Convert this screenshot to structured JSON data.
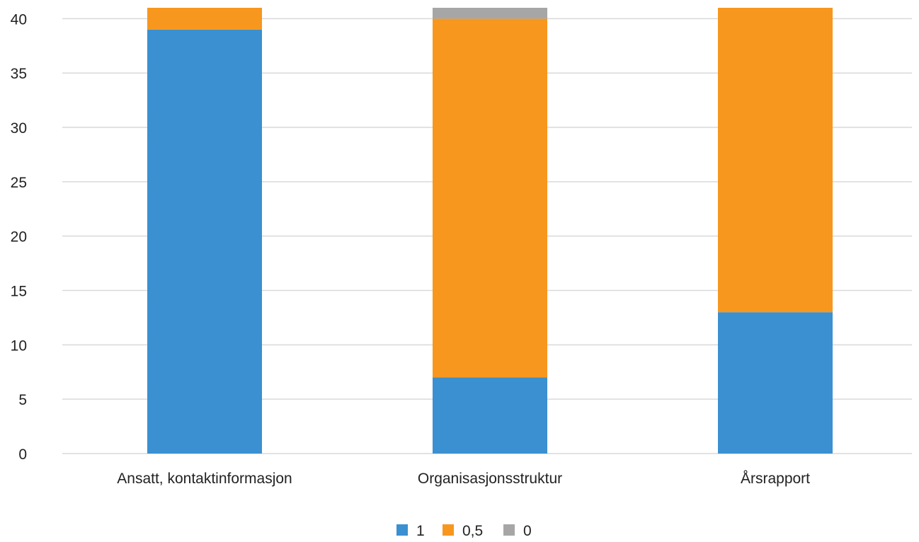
{
  "chart_data": {
    "type": "bar",
    "stacked": true,
    "categories": [
      "Ansatt, kontaktinformasjon",
      "Organisasjonsstruktur",
      "Årsrapport"
    ],
    "series": [
      {
        "name": "1",
        "color": "#3a90d0",
        "values": [
          39,
          7,
          13
        ]
      },
      {
        "name": "0,5",
        "color": "#f7971e",
        "values": [
          2,
          33,
          28
        ]
      },
      {
        "name": "0",
        "color": "#a6a6a6",
        "values": [
          0,
          1,
          0
        ]
      }
    ],
    "ylim": [
      0,
      41
    ],
    "yticks": [
      0,
      5,
      10,
      15,
      20,
      25,
      30,
      35,
      40
    ],
    "grid": true,
    "legend_position": "bottom"
  }
}
